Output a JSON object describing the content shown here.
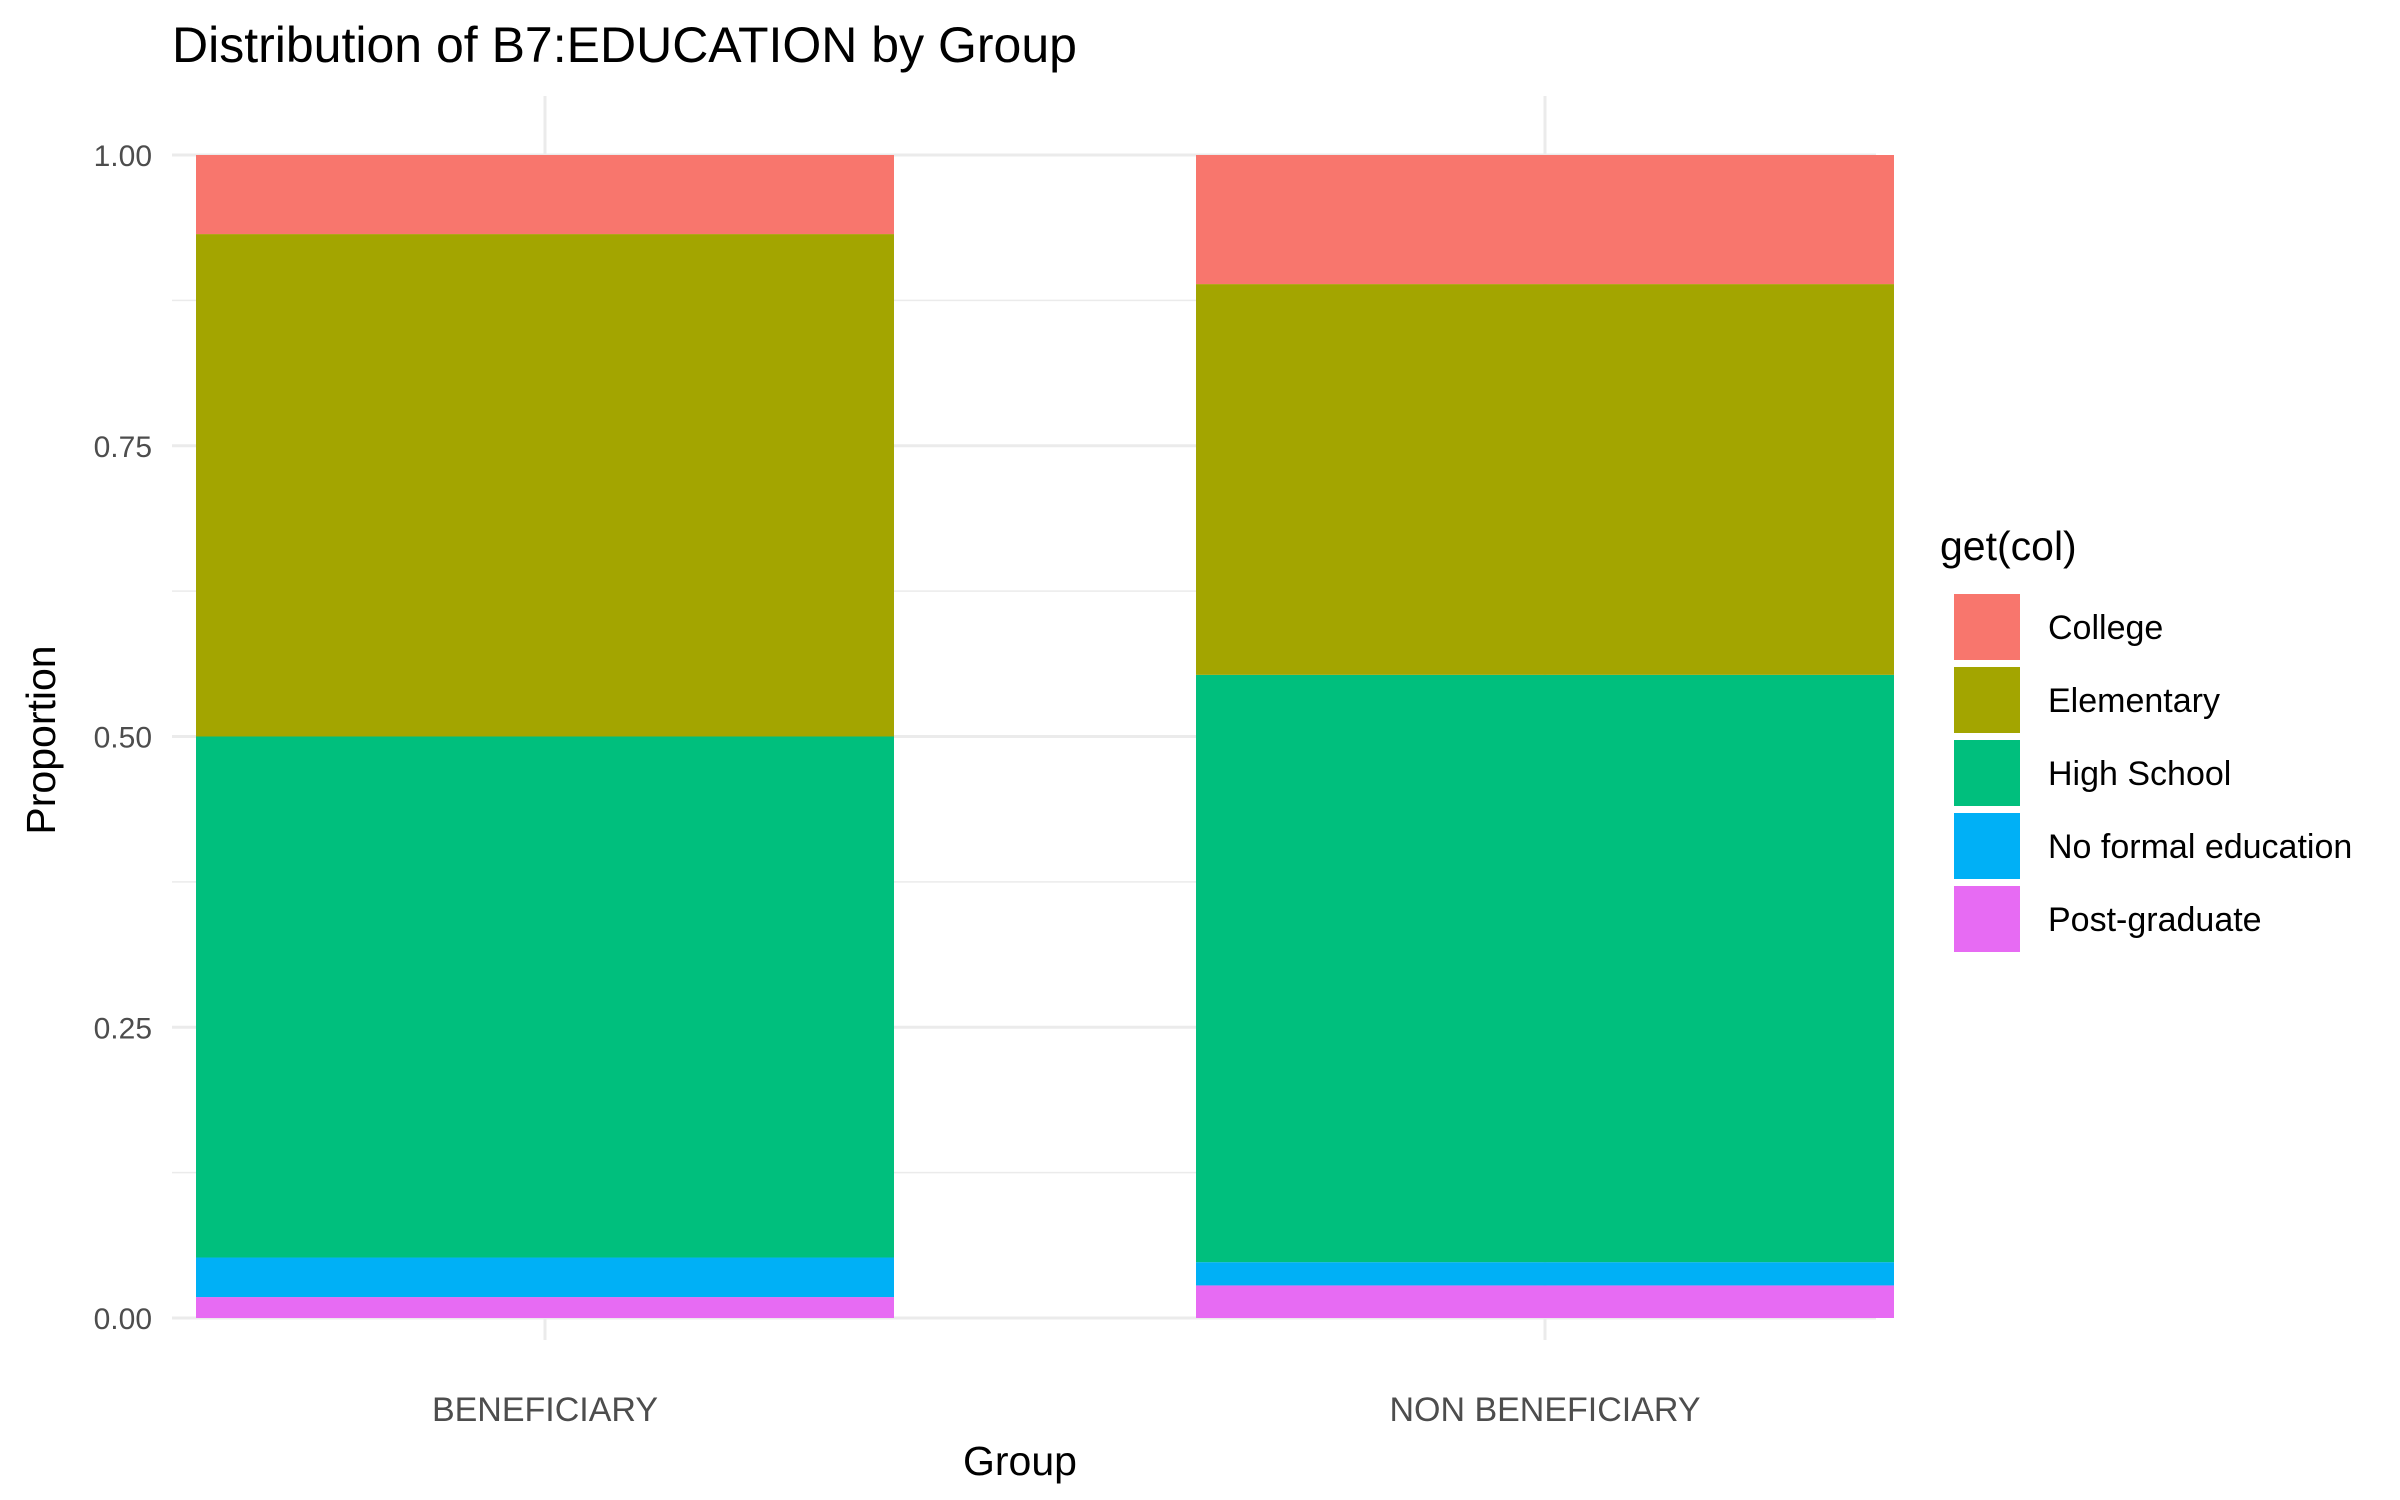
{
  "chart_data": {
    "type": "bar",
    "stacked": true,
    "title": "Distribution of B7:EDUCATION by Group",
    "xlabel": "Group",
    "ylabel": "Proportion",
    "ylim": [
      0,
      1
    ],
    "yticks": [
      "0.00",
      "0.25",
      "0.50",
      "0.75",
      "1.00"
    ],
    "ytick_values": [
      0,
      0.25,
      0.5,
      0.75,
      1.0
    ],
    "categories": [
      "BENEFICIARY",
      "NON BENEFICIARY"
    ],
    "legend_title": "get(col)",
    "legend_position": "right",
    "grid": true,
    "series": [
      {
        "name": "Post-graduate",
        "color": "#E76BF3",
        "values": [
          0.018,
          0.028
        ]
      },
      {
        "name": "No formal education",
        "color": "#00B0F6",
        "values": [
          0.034,
          0.02
        ]
      },
      {
        "name": "High School",
        "color": "#00BF7D",
        "values": [
          0.448,
          0.505
        ]
      },
      {
        "name": "Elementary",
        "color": "#A3A500",
        "values": [
          0.432,
          0.336
        ]
      },
      {
        "name": "College",
        "color": "#F8766D",
        "values": [
          0.068,
          0.111
        ]
      }
    ],
    "legend_order": [
      "College",
      "Elementary",
      "High School",
      "No formal education",
      "Post-graduate"
    ]
  }
}
